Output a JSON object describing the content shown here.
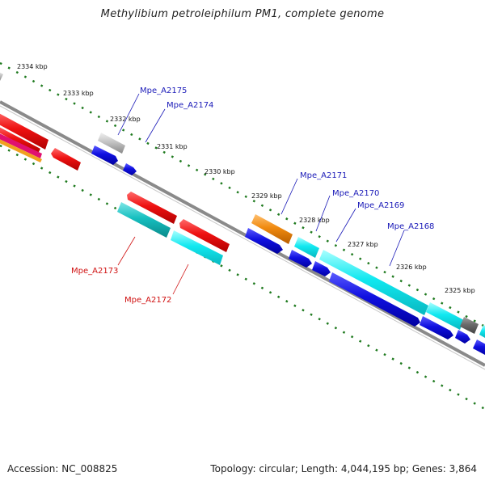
{
  "title": "Methylibium petroleiphilum PM1, complete genome",
  "footer": {
    "accession": "Accession: NC_008825",
    "summary": "Topology: circular; Length: 4,044,195 bp; Genes: 3,864"
  },
  "ticks": [
    "2334 kbp",
    "2333 kbp",
    "2332 kbp",
    "2331 kbp",
    "2330 kbp",
    "2329 kbp",
    "2328 kbp",
    "2327 kbp",
    "2326 kbp",
    "2325 kbp"
  ],
  "labels_forward": [
    "Mpe_A2175",
    "Mpe_A2174",
    "Mpe_A2171",
    "Mpe_A2170",
    "Mpe_A2169",
    "Mpe_A2168"
  ],
  "labels_reverse": [
    "Mpe_A2173",
    "Mpe_A2172"
  ],
  "colors": {
    "backbone": "#777777",
    "tick": "#1f7a1f",
    "label_forward": "#1a1ab8",
    "label_reverse": "#d01010",
    "red": "#ee1111",
    "blue": "#1010e0",
    "cyan": "#11e8f0",
    "teal": "#16bfc0",
    "orange": "#f08a10",
    "gray": "#bbbbbb",
    "darkgray": "#6b6b6b"
  }
}
